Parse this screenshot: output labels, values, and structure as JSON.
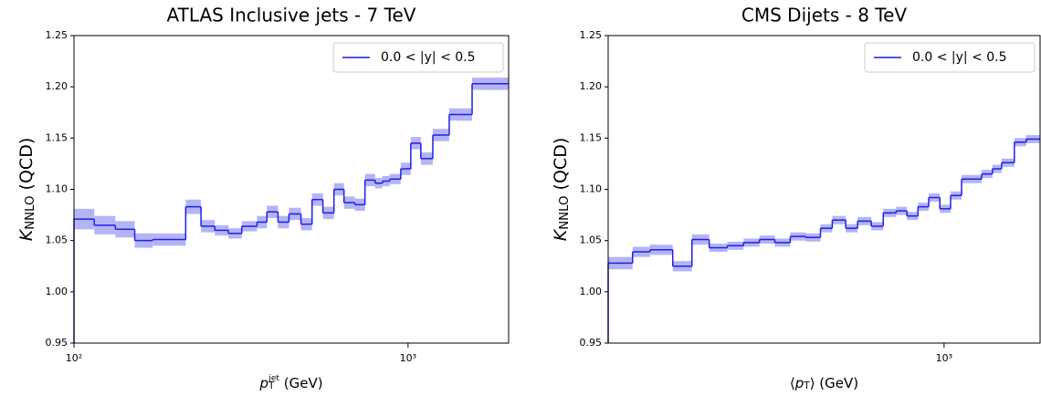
{
  "chart_data": [
    {
      "type": "step",
      "title": "ATLAS Inclusive jets - 7 TeV",
      "xlabel": [
        {
          "text": "p",
          "style": "italic"
        },
        {
          "text": "T",
          "style": "sub"
        },
        {
          "text": "jet",
          "style": "sup"
        },
        {
          "text": " (GeV)"
        }
      ],
      "ylabel": [
        {
          "text": "K",
          "style": "italic"
        },
        {
          "text": "NNLO",
          "style": "sub"
        },
        {
          "text": " (QCD)"
        }
      ],
      "xscale": "log",
      "xlim": [
        100,
        2000
      ],
      "xticks": [
        {
          "value": 100,
          "label": "10²"
        },
        {
          "value": 1000,
          "label": "10³"
        }
      ],
      "ylim": [
        0.95,
        1.25
      ],
      "yticks": [
        0.95,
        {
          "value": 1.0,
          "label": "1.00"
        },
        1.05,
        {
          "value": 1.1,
          "label": "1.10"
        },
        1.15,
        {
          "value": 1.2,
          "label": "1.20"
        },
        1.25
      ],
      "legend": "upper right",
      "series": [
        {
          "name": "0.0 < |y| < 0.5",
          "color": "#1f1fe6",
          "band_color": "#b4b4f5",
          "bins": [
            100,
            115,
            133,
            152,
            172,
            216,
            240,
            264,
            290,
            318,
            353,
            378,
            408,
            440,
            478,
            516,
            556,
            600,
            643,
            693,
            743,
            797,
            838,
            881,
            951,
            1019,
            1092,
            1186,
            1328,
            1555,
            2000
          ],
          "values": [
            1.071,
            1.065,
            1.061,
            1.05,
            1.051,
            1.083,
            1.064,
            1.06,
            1.057,
            1.064,
            1.068,
            1.078,
            1.068,
            1.076,
            1.066,
            1.09,
            1.077,
            1.1,
            1.087,
            1.085,
            1.109,
            1.106,
            1.108,
            1.11,
            1.12,
            1.145,
            1.13,
            1.153,
            1.173,
            1.203
          ],
          "errors": [
            0.01,
            0.009,
            0.008,
            0.007,
            0.006,
            0.007,
            0.006,
            0.005,
            0.005,
            0.005,
            0.006,
            0.006,
            0.006,
            0.006,
            0.006,
            0.006,
            0.006,
            0.006,
            0.006,
            0.006,
            0.006,
            0.005,
            0.005,
            0.005,
            0.006,
            0.006,
            0.006,
            0.006,
            0.006,
            0.006
          ]
        }
      ]
    },
    {
      "type": "step",
      "title": "CMS Dijets - 8 TeV",
      "xlabel": [
        {
          "text": "⟨"
        },
        {
          "text": "p",
          "style": "italic"
        },
        {
          "text": "T",
          "style": "sub"
        },
        {
          "text": "⟩ (GeV)"
        }
      ],
      "ylabel": [
        {
          "text": "K",
          "style": "italic"
        },
        {
          "text": "NNLO",
          "style": "sub"
        },
        {
          "text": " (QCD)"
        }
      ],
      "xscale": "log",
      "xlim": [
        133,
        1780
      ],
      "xticks": [
        {
          "value": 1000,
          "label": "10³"
        }
      ],
      "ylim": [
        0.95,
        1.25
      ],
      "yticks": [
        0.95,
        {
          "value": 1.0,
          "label": "1.00"
        },
        1.05,
        {
          "value": 1.1,
          "label": "1.10"
        },
        1.15,
        {
          "value": 1.2,
          "label": "1.20"
        },
        1.25
      ],
      "legend": "upper right",
      "series": [
        {
          "name": "0.0 < |y| < 0.5",
          "color": "#1f1fe6",
          "band_color": "#b4b4f5",
          "bins": [
            133,
            154,
            171,
            196,
            220,
            244,
            272,
            300,
            330,
            362,
            397,
            436,
            476,
            511,
            554,
            595,
            646,
            694,
            750,
            800,
            855,
            912,
            975,
            1040,
            1111,
            1253,
            1337,
            1413,
            1525,
            1637,
            1780
          ],
          "values": [
            1.028,
            1.039,
            1.041,
            1.025,
            1.051,
            1.043,
            1.045,
            1.048,
            1.051,
            1.048,
            1.054,
            1.053,
            1.062,
            1.07,
            1.062,
            1.069,
            1.064,
            1.077,
            1.079,
            1.074,
            1.083,
            1.092,
            1.081,
            1.094,
            1.11,
            1.115,
            1.12,
            1.126,
            1.146,
            1.149
          ],
          "errors": [
            0.006,
            0.005,
            0.005,
            0.005,
            0.005,
            0.004,
            0.004,
            0.004,
            0.004,
            0.004,
            0.004,
            0.004,
            0.004,
            0.004,
            0.004,
            0.004,
            0.004,
            0.004,
            0.004,
            0.004,
            0.004,
            0.004,
            0.004,
            0.004,
            0.004,
            0.004,
            0.004,
            0.004,
            0.004,
            0.004
          ]
        }
      ]
    }
  ]
}
